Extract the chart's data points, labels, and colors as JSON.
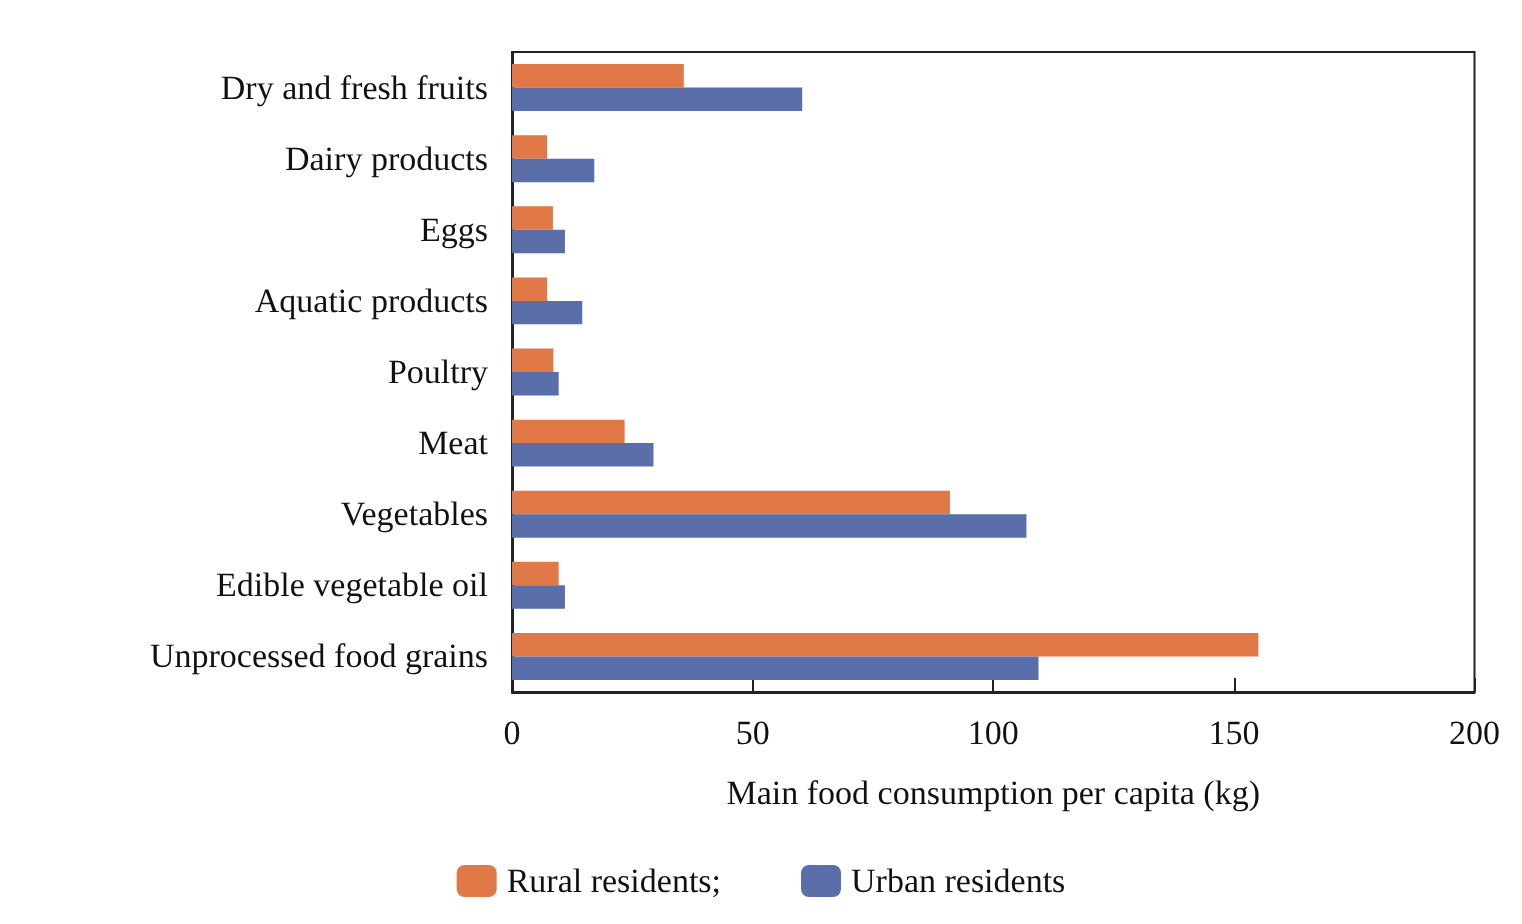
{
  "chart_data": {
    "type": "bar",
    "orientation": "horizontal",
    "xlabel": "Main food consumption per capita (kg)",
    "categories": [
      "Dry and fresh fruits",
      "Dairy products",
      "Eggs",
      "Aquatic products",
      "Poultry",
      "Meat",
      "Vegetables",
      "Edible vegetable oil",
      "Unprocessed food grains"
    ],
    "series": [
      {
        "name": "Rural residents;",
        "color": "#e07848",
        "values": [
          35.7,
          7.3,
          8.5,
          7.3,
          8.6,
          23.4,
          91.0,
          9.7,
          155.1
        ]
      },
      {
        "name": "Urban residents",
        "color": "#5a6eaa",
        "values": [
          60.3,
          17.1,
          11.0,
          14.6,
          9.7,
          29.4,
          106.9,
          11.0,
          109.4
        ]
      }
    ],
    "xlim": [
      0,
      200
    ],
    "xticks": [
      0,
      50,
      100,
      150,
      200
    ],
    "grid": false,
    "legend": "bottom"
  }
}
